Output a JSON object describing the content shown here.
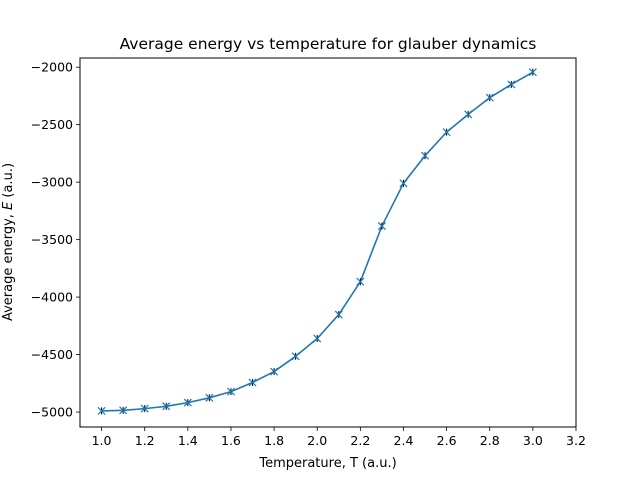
{
  "chart_data": {
    "type": "line",
    "title": "Average energy vs temperature for glauber dynamics",
    "xlabel": "Temperature, T (a.u.)",
    "ylabel_prefix": "Average energy, ",
    "ylabel_symbol": "E",
    "ylabel_suffix": " (a.u.)",
    "xlim": [
      0.9,
      3.2
    ],
    "ylim": [
      -5130,
      -1920
    ],
    "xticks": [
      1.0,
      1.2,
      1.4,
      1.6,
      1.8,
      2.0,
      2.2,
      2.4,
      2.6,
      2.8,
      3.0,
      3.2
    ],
    "xtick_labels": [
      "1.0",
      "1.2",
      "1.4",
      "1.6",
      "1.8",
      "2.0",
      "2.2",
      "2.4",
      "2.6",
      "2.8",
      "3.0",
      "3.2"
    ],
    "yticks": [
      -5000,
      -4500,
      -4000,
      -3500,
      -3000,
      -2500,
      -2000
    ],
    "ytick_labels": [
      "−5000",
      "−4500",
      "−4000",
      "−3500",
      "−3000",
      "−2500",
      "−2000"
    ],
    "grid": false,
    "line_color": "#1f77b4",
    "marker_color": "#1f77b4",
    "errorbar_color": "#000000",
    "series": [
      {
        "marker": "x",
        "x": [
          1.0,
          1.1,
          1.2,
          1.3,
          1.4,
          1.5,
          1.6,
          1.7,
          1.8,
          1.9,
          2.0,
          2.1,
          2.2,
          2.3,
          2.4,
          2.5,
          2.6,
          2.7,
          2.8,
          2.9,
          3.0
        ],
        "y": [
          -4990,
          -4985,
          -4970,
          -4950,
          -4918,
          -4876,
          -4822,
          -4743,
          -4648,
          -4515,
          -4360,
          -4152,
          -3866,
          -3382,
          -3010,
          -2770,
          -2565,
          -2410,
          -2265,
          -2150,
          -2043
        ]
      }
    ]
  }
}
